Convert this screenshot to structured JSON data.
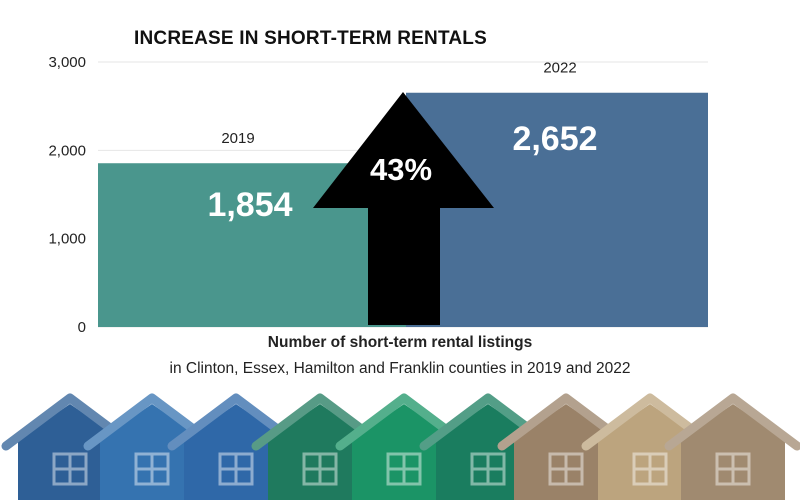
{
  "chart_data": {
    "type": "bar",
    "title": "INCREASE IN SHORT-TERM RENTALS",
    "categories": [
      "2019",
      "2022"
    ],
    "values": [
      1854,
      2652
    ],
    "value_labels": [
      "1,854",
      "2,652"
    ],
    "bar_colors": [
      "#4a968d",
      "#4a6f96"
    ],
    "ylim": [
      0,
      3000
    ],
    "yticks": [
      0,
      1000,
      2000,
      3000
    ],
    "ytick_labels": [
      "0",
      "1,000",
      "2,000",
      "3,000"
    ],
    "grid": true,
    "annotation": {
      "text": "43%",
      "shape": "up-arrow",
      "color": "#000000"
    },
    "xlabel": "Number of short-term rental listings",
    "subtitle": "in Clinton, Essex, Hamilton and Franklin counties in 2019 and 2022"
  },
  "decoration": {
    "house_colors": [
      "#2e5f96",
      "#3573b0",
      "#2f68a8",
      "#1f7a5e",
      "#1b9466",
      "#1a7d5f",
      "#9a8268",
      "#bca47e",
      "#a08a70"
    ],
    "icon": "house-icon"
  }
}
